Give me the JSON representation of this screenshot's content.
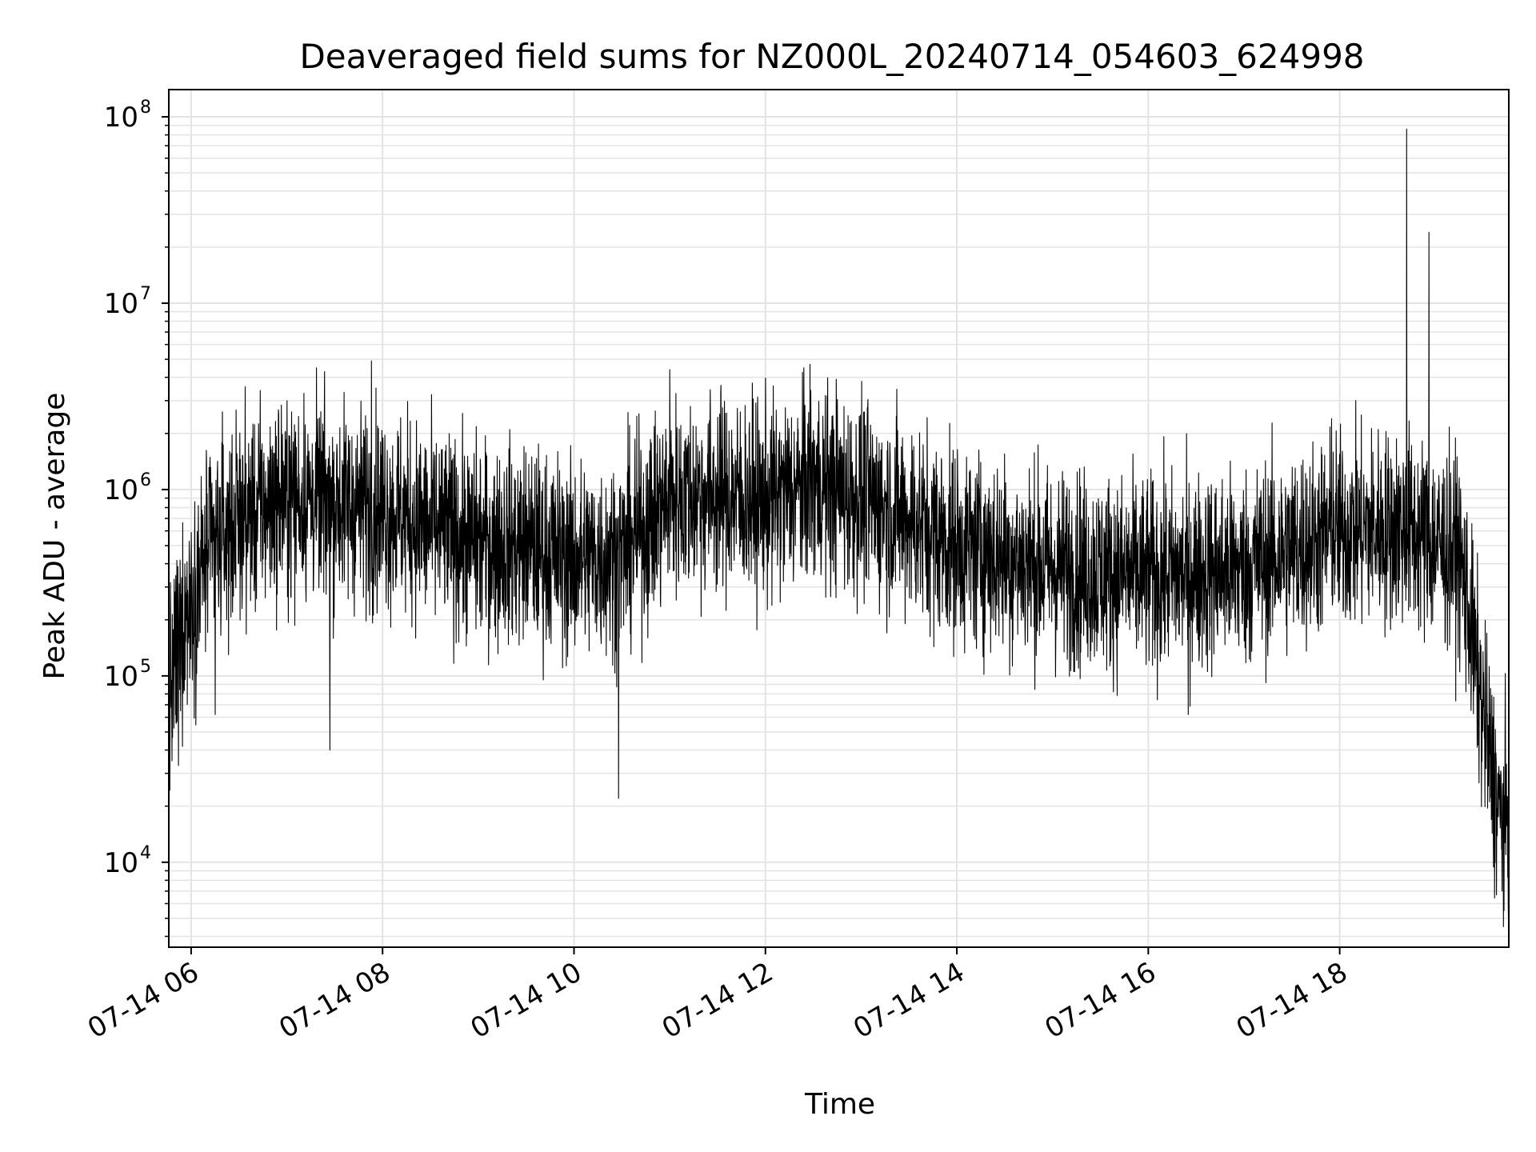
{
  "chart_data": {
    "type": "line",
    "title": "Deaveraged field sums for NZ000L_20240714_054603_624998",
    "xlabel": "Time",
    "ylabel": "Peak ADU - average",
    "yscale": "log",
    "ylim": [
      3500,
      140000000
    ],
    "xlim": [
      "2024-07-14 05:46",
      "2024-07-14 19:46"
    ],
    "grid": true,
    "line_color": "#000000",
    "grid_color": "#e3e3e3",
    "x_ticks": [
      {
        "value": "2024-07-14 06:00",
        "label": "07-14 06"
      },
      {
        "value": "2024-07-14 08:00",
        "label": "07-14 08"
      },
      {
        "value": "2024-07-14 10:00",
        "label": "07-14 10"
      },
      {
        "value": "2024-07-14 12:00",
        "label": "07-14 12"
      },
      {
        "value": "2024-07-14 14:00",
        "label": "07-14 14"
      },
      {
        "value": "2024-07-14 16:00",
        "label": "07-14 16"
      },
      {
        "value": "2024-07-14 18:00",
        "label": "07-14 18"
      }
    ],
    "y_ticks": [
      {
        "value": 10000,
        "base": "10",
        "exp": "4"
      },
      {
        "value": 100000,
        "base": "10",
        "exp": "5"
      },
      {
        "value": 1000000,
        "base": "10",
        "exp": "6"
      },
      {
        "value": 10000000,
        "base": "10",
        "exp": "7"
      },
      {
        "value": 100000000,
        "base": "10",
        "exp": "8"
      }
    ],
    "series": [
      {
        "trend": [
          {
            "x": "2024-07-14 05:46",
            "y": 80000
          },
          {
            "x": "2024-07-14 05:55",
            "y": 200000
          },
          {
            "x": "2024-07-14 06:10",
            "y": 450000
          },
          {
            "x": "2024-07-14 06:30",
            "y": 700000
          },
          {
            "x": "2024-07-14 07:00",
            "y": 900000
          },
          {
            "x": "2024-07-14 07:30",
            "y": 850000
          },
          {
            "x": "2024-07-14 08:00",
            "y": 800000
          },
          {
            "x": "2024-07-14 08:30",
            "y": 620000
          },
          {
            "x": "2024-07-14 09:00",
            "y": 520000
          },
          {
            "x": "2024-07-14 09:30",
            "y": 500000
          },
          {
            "x": "2024-07-14 10:00",
            "y": 420000
          },
          {
            "x": "2024-07-14 10:30",
            "y": 450000
          },
          {
            "x": "2024-07-14 11:00",
            "y": 900000
          },
          {
            "x": "2024-07-14 11:30",
            "y": 950000
          },
          {
            "x": "2024-07-14 12:00",
            "y": 850000
          },
          {
            "x": "2024-07-14 12:30",
            "y": 1100000
          },
          {
            "x": "2024-07-14 13:00",
            "y": 900000
          },
          {
            "x": "2024-07-14 13:30",
            "y": 700000
          },
          {
            "x": "2024-07-14 14:00",
            "y": 500000
          },
          {
            "x": "2024-07-14 15:00",
            "y": 380000
          },
          {
            "x": "2024-07-14 16:00",
            "y": 340000
          },
          {
            "x": "2024-07-14 17:00",
            "y": 380000
          },
          {
            "x": "2024-07-14 18:00",
            "y": 600000
          },
          {
            "x": "2024-07-14 18:40",
            "y": 620000
          },
          {
            "x": "2024-07-14 19:15",
            "y": 450000
          },
          {
            "x": "2024-07-14 19:20",
            "y": 250000
          },
          {
            "x": "2024-07-14 19:30",
            "y": 60000
          },
          {
            "x": "2024-07-14 19:40",
            "y": 18000
          },
          {
            "x": "2024-07-14 19:46",
            "y": 18000
          }
        ],
        "noise_decades": 0.38,
        "spikes": [
          {
            "x": "2024-07-14 05:48",
            "y": 35000
          },
          {
            "x": "2024-07-14 05:52",
            "y": 33000
          },
          {
            "x": "2024-07-14 06:15",
            "y": 62000
          },
          {
            "x": "2024-07-14 07:27",
            "y": 40000
          },
          {
            "x": "2024-07-14 07:53",
            "y": 4900000
          },
          {
            "x": "2024-07-14 10:28",
            "y": 22000
          },
          {
            "x": "2024-07-14 11:00",
            "y": 4400000
          },
          {
            "x": "2024-07-14 12:28",
            "y": 4700000
          },
          {
            "x": "2024-07-14 14:15",
            "y": 1400000
          },
          {
            "x": "2024-07-14 16:25",
            "y": 62000
          },
          {
            "x": "2024-07-14 17:55",
            "y": 2400000
          },
          {
            "x": "2024-07-14 18:42",
            "y": 86000000
          },
          {
            "x": "2024-07-14 18:56",
            "y": 24000000
          },
          {
            "x": "2024-07-14 19:43",
            "y": 5500
          }
        ]
      }
    ]
  }
}
